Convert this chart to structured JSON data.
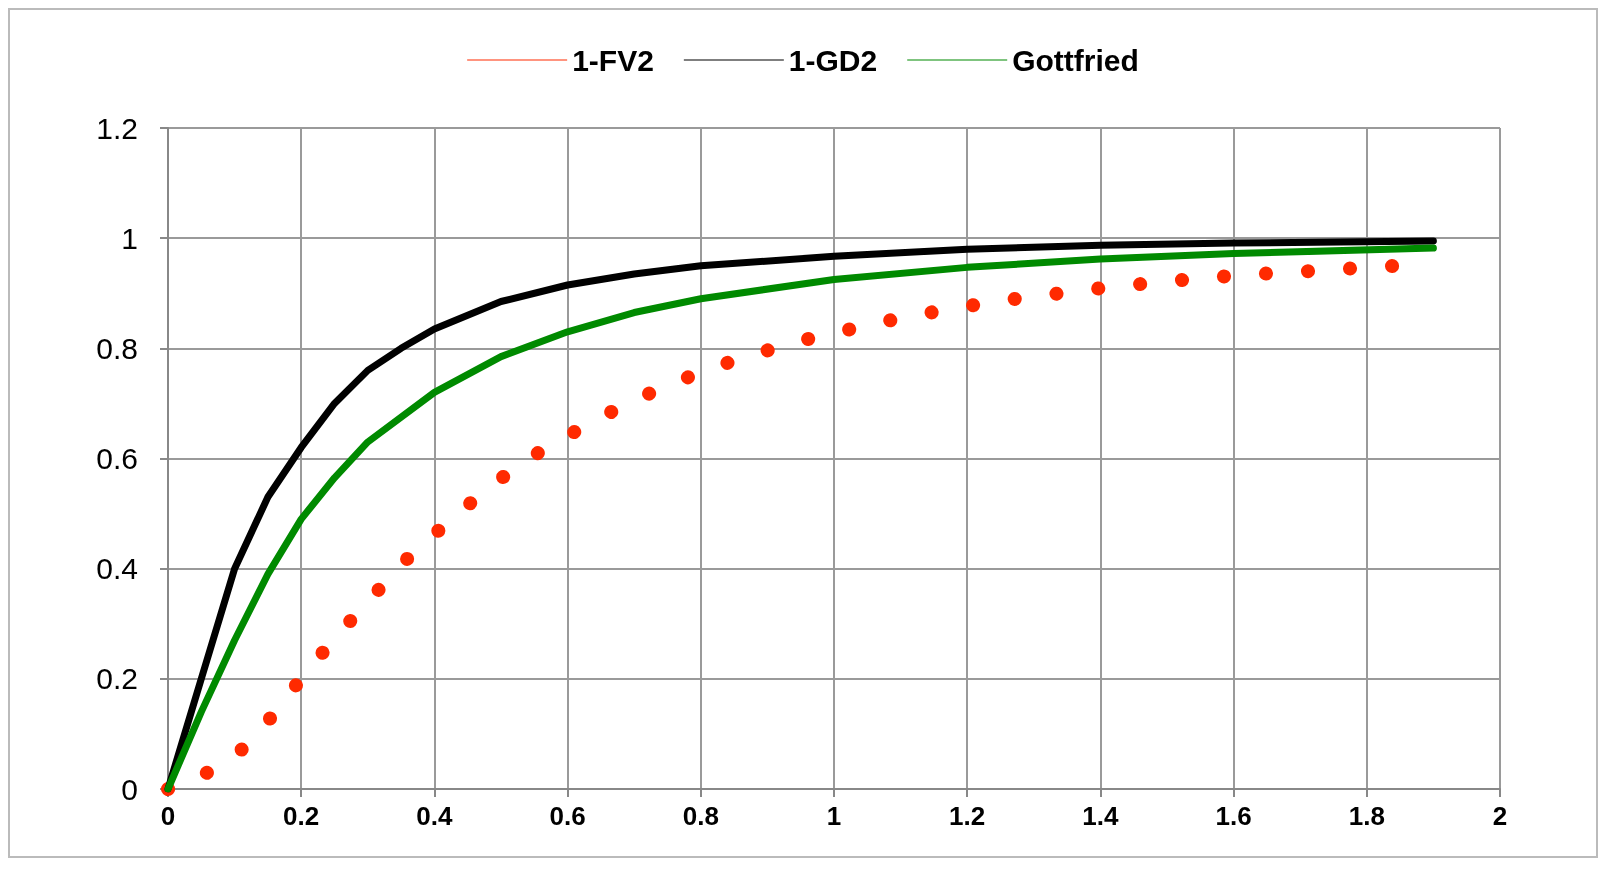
{
  "chart_data": {
    "type": "line",
    "legend": "top",
    "grid": true,
    "xlim": [
      0,
      2
    ],
    "xticks": [
      0,
      0.2,
      0.4,
      0.6,
      0.8,
      1,
      1.2,
      1.4,
      1.6,
      1.8,
      2
    ],
    "ylim": [
      0,
      1.2
    ],
    "yticks": [
      0,
      0.2,
      0.4,
      0.6,
      0.8,
      1,
      1.2
    ],
    "marker": "none",
    "series": [
      {
        "name": "1-FV2",
        "color": "#ff2a00",
        "line_style": "dotted",
        "x": [
          0,
          0.052,
          0.097,
          0.13,
          0.158,
          0.184,
          0.212,
          0.24,
          0.27,
          0.3,
          0.33,
          0.36,
          0.395,
          0.43,
          0.467,
          0.505,
          0.546,
          0.59,
          0.636,
          0.683,
          0.732,
          0.782,
          0.836,
          0.891,
          0.947,
          1.004,
          1.062,
          1.12,
          1.18,
          1.24,
          1.3,
          1.36,
          1.42,
          1.48,
          1.54,
          1.6,
          1.665,
          1.726,
          1.788,
          1.848
        ],
        "values": [
          0,
          0.025,
          0.056,
          0.094,
          0.135,
          0.176,
          0.218,
          0.259,
          0.3,
          0.34,
          0.38,
          0.419,
          0.457,
          0.495,
          0.532,
          0.568,
          0.603,
          0.635,
          0.665,
          0.696,
          0.723,
          0.748,
          0.772,
          0.793,
          0.813,
          0.829,
          0.845,
          0.86,
          0.872,
          0.885,
          0.894,
          0.903,
          0.912,
          0.919,
          0.926,
          0.932,
          0.937,
          0.941,
          0.946,
          0.95
        ]
      },
      {
        "name": "1-GD2",
        "color": "#000000",
        "line_style": "solid",
        "x": [
          0,
          0.05,
          0.1,
          0.15,
          0.2,
          0.25,
          0.3,
          0.35,
          0.4,
          0.5,
          0.6,
          0.7,
          0.8,
          1,
          1.2,
          1.4,
          1.6,
          1.9
        ],
        "values": [
          0,
          0.2,
          0.4,
          0.53,
          0.62,
          0.7,
          0.76,
          0.8,
          0.835,
          0.885,
          0.915,
          0.935,
          0.95,
          0.967,
          0.98,
          0.987,
          0.991,
          0.995
        ]
      },
      {
        "name": "Gottfried",
        "color": "#008a00",
        "line_style": "solid",
        "x": [
          0,
          0.05,
          0.1,
          0.15,
          0.2,
          0.25,
          0.3,
          0.4,
          0.5,
          0.6,
          0.7,
          0.8,
          1,
          1.2,
          1.4,
          1.6,
          1.9
        ],
        "values": [
          0,
          0.14,
          0.27,
          0.39,
          0.49,
          0.565,
          0.63,
          0.72,
          0.785,
          0.83,
          0.865,
          0.89,
          0.925,
          0.947,
          0.962,
          0.972,
          0.982
        ]
      }
    ]
  }
}
